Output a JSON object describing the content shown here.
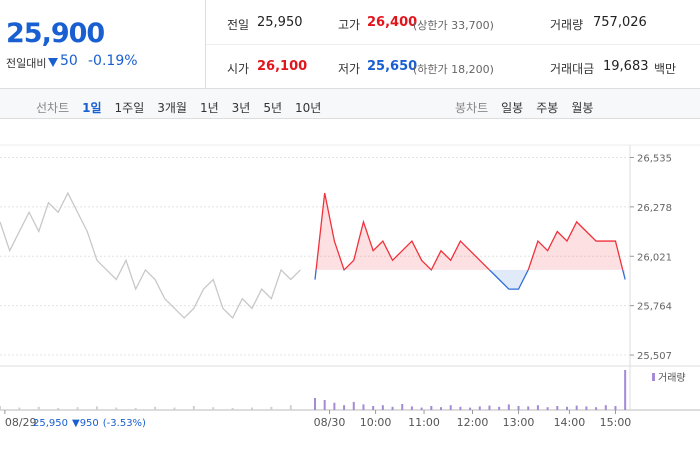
{
  "header": {
    "price": "25,900",
    "change_label": "전일대비",
    "change": "50",
    "change_rate": "-0.19%",
    "stats": [
      {
        "label": "전일",
        "value": "25,950"
      },
      {
        "label": "고가",
        "value": "26,400",
        "note": "(상한가 33,700)"
      },
      {
        "label": "거래량",
        "value": "757,026"
      },
      {
        "label": "시가",
        "value": "26,100"
      },
      {
        "label": "저가",
        "value": "25,650",
        "note": "(하한가 18,200)"
      },
      {
        "label": "거래대금",
        "value": "19,683",
        "note": "백만"
      }
    ]
  },
  "tabs": {
    "line_label": "선차트",
    "line_periods": [
      "1일",
      "1주일",
      "3개월",
      "1년",
      "3년",
      "5년",
      "10년"
    ],
    "candle_label": "봉차트",
    "candle_periods": [
      "일봉",
      "주봉",
      "월봉"
    ]
  },
  "chart_data": {
    "type": "line",
    "baseline": 25950,
    "ylim": [
      25450,
      26600
    ],
    "yticks": [
      {
        "value": 26535,
        "label": "26,535"
      },
      {
        "value": 26278,
        "label": "26,278"
      },
      {
        "value": 26021,
        "label": "26,021"
      },
      {
        "value": 25764,
        "label": "25,764"
      },
      {
        "value": 25507,
        "label": "25,507"
      }
    ],
    "xlim": [
      0,
      130
    ],
    "xticks": [
      {
        "value": 1,
        "label": "08/29"
      },
      {
        "value": 68,
        "label": "08/30"
      },
      {
        "value": 77.5,
        "label": "10:00"
      },
      {
        "value": 87.5,
        "label": "11:00"
      },
      {
        "value": 97.5,
        "label": "12:00"
      },
      {
        "value": 107,
        "label": "13:00"
      },
      {
        "value": 117.5,
        "label": "14:00"
      },
      {
        "value": 127,
        "label": "15:00"
      }
    ],
    "annotations": [
      "25,950",
      "▼950",
      "(-3.53%)"
    ],
    "y2lim": [
      0,
      100
    ],
    "series": [
      {
        "color": "#c8c8c8",
        "x": [
          0,
          2,
          4,
          6,
          8,
          10,
          12,
          14,
          16,
          18,
          20,
          22,
          24,
          26,
          28,
          30,
          32,
          34,
          36,
          38,
          40,
          42,
          44,
          46,
          48,
          50,
          52,
          54,
          56,
          58,
          60,
          62
        ],
        "values": [
          26200,
          26050,
          26150,
          26250,
          26150,
          26300,
          26250,
          26350,
          26250,
          26150,
          26000,
          25950,
          25900,
          26000,
          25850,
          25950,
          25900,
          25800,
          25750,
          25700,
          25750,
          25850,
          25900,
          25750,
          25700,
          25800,
          25750,
          25850,
          25800,
          25950,
          25900,
          25950
        ]
      },
      {
        "color": "#f0313c",
        "below_color": "#2f6fd6",
        "x": [
          65,
          67,
          69,
          71,
          73,
          75,
          77,
          79,
          81,
          83,
          85,
          87,
          89,
          91,
          93,
          95,
          97,
          99,
          101,
          103,
          105,
          107,
          109,
          111,
          113,
          115,
          117,
          119,
          121,
          123,
          125,
          127,
          129
        ],
        "values": [
          25900,
          26350,
          26100,
          25950,
          26000,
          26200,
          26050,
          26100,
          26000,
          26050,
          26100,
          26000,
          25950,
          26050,
          26000,
          26100,
          26050,
          26000,
          25950,
          25900,
          25850,
          25850,
          25950,
          26100,
          26050,
          26150,
          26100,
          26200,
          26150,
          26100,
          26100,
          26100,
          25900
        ]
      },
      {
        "color": "#d0d0d0",
        "axis": "y2",
        "x": [
          0,
          4,
          8,
          12,
          16,
          20,
          24,
          28,
          32,
          36,
          40,
          44,
          48,
          52,
          56,
          60
        ],
        "values": [
          10,
          6,
          8,
          5,
          7,
          9,
          6,
          5,
          8,
          6,
          10,
          7,
          5,
          6,
          8,
          12
        ]
      },
      {
        "name": "거래량",
        "color": "#a58ad6",
        "axis": "y2",
        "x": [
          65,
          67,
          69,
          71,
          73,
          75,
          77,
          79,
          81,
          83,
          85,
          87,
          89,
          91,
          93,
          95,
          97,
          99,
          101,
          103,
          105,
          107,
          109,
          111,
          113,
          115,
          117,
          119,
          121,
          123,
          125,
          127,
          129
        ],
        "values": [
          30,
          25,
          18,
          12,
          20,
          14,
          10,
          12,
          8,
          15,
          9,
          6,
          10,
          7,
          12,
          8,
          6,
          9,
          11,
          8,
          14,
          10,
          9,
          12,
          7,
          10,
          8,
          11,
          9,
          7,
          12,
          10,
          100
        ]
      }
    ]
  }
}
